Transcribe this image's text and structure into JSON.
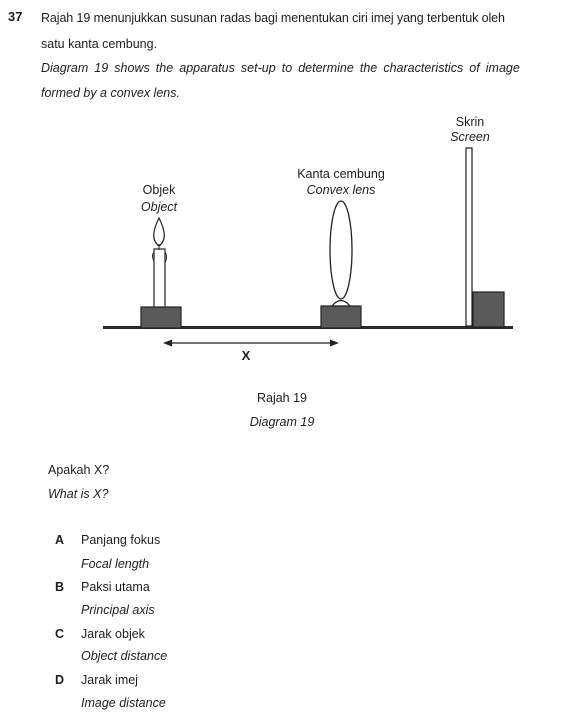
{
  "question": {
    "number": "37",
    "stem_ms_line1": "Rajah 19 menunjukkan susunan radas bagi menentukan ciri imej yang terbentuk oleh",
    "stem_ms_line2": "satu kanta cembung.",
    "stem_en_line1": "Diagram 19 shows the apparatus set-up to determine the characteristics of image",
    "stem_en_line2": "formed by a convex lens."
  },
  "diagram": {
    "object_label_ms": "Objek",
    "object_label_en": "Object",
    "lens_label_ms": "Kanta cembung",
    "lens_label_en": "Convex lens",
    "screen_label_ms": "Skrin",
    "screen_label_en": "Screen",
    "distance_label": "X",
    "caption_ms": "Rajah 19",
    "caption_en": "Diagram 19"
  },
  "prompt": {
    "ms": "Apakah X?",
    "en": "What is X?"
  },
  "options": [
    {
      "letter": "A",
      "ms": "Panjang fokus",
      "en": "Focal length"
    },
    {
      "letter": "B",
      "ms": "Paksi utama",
      "en": "Principal axis"
    },
    {
      "letter": "C",
      "ms": "Jarak objek",
      "en": "Object distance"
    },
    {
      "letter": "D",
      "ms": "Jarak imej",
      "en": "Image distance"
    }
  ]
}
